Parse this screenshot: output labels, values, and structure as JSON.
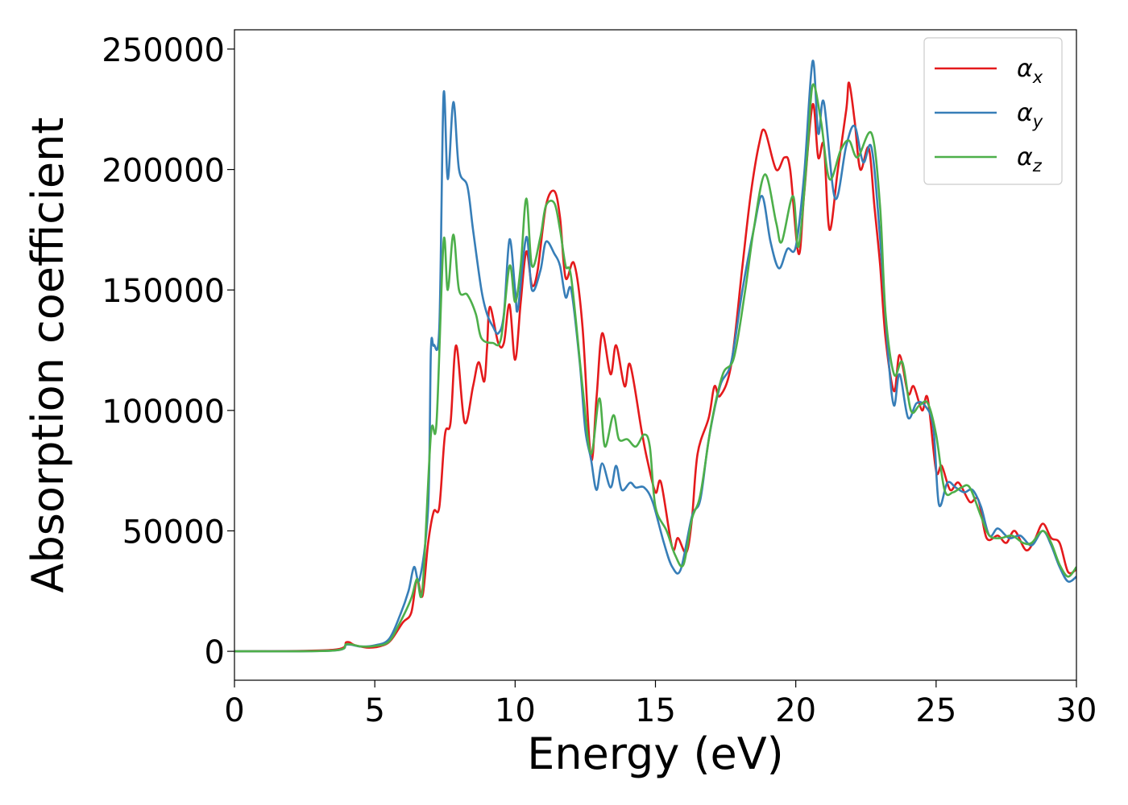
{
  "chart_data": {
    "type": "line",
    "xlabel": "Energy (eV)",
    "ylabel": "Absorption coefficient",
    "xlim": [
      0,
      30
    ],
    "ylim": [
      -12000,
      258000
    ],
    "xticks": [
      "0",
      "5",
      "10",
      "15",
      "20",
      "25",
      "30"
    ],
    "yticks": [
      "0",
      "50000",
      "100000",
      "150000",
      "200000",
      "250000"
    ],
    "grid": false,
    "legend_position": "top-right",
    "series": [
      {
        "name": "α",
        "subscript": "x",
        "color": "#e41a1c",
        "points": [
          [
            0,
            0
          ],
          [
            3.5,
            600
          ],
          [
            4.0,
            3800
          ],
          [
            4.3,
            2500
          ],
          [
            4.8,
            1500
          ],
          [
            5.3,
            2500
          ],
          [
            5.6,
            5000
          ],
          [
            6.0,
            12000
          ],
          [
            6.3,
            16000
          ],
          [
            6.5,
            30000
          ],
          [
            6.7,
            23000
          ],
          [
            6.9,
            45000
          ],
          [
            7.1,
            58000
          ],
          [
            7.3,
            60000
          ],
          [
            7.5,
            90000
          ],
          [
            7.7,
            95000
          ],
          [
            7.9,
            127000
          ],
          [
            8.2,
            95000
          ],
          [
            8.5,
            110000
          ],
          [
            8.7,
            120000
          ],
          [
            8.9,
            112000
          ],
          [
            9.0,
            126000
          ],
          [
            9.1,
            143000
          ],
          [
            9.4,
            128000
          ],
          [
            9.6,
            128000
          ],
          [
            9.8,
            144000
          ],
          [
            10.0,
            121000
          ],
          [
            10.2,
            145000
          ],
          [
            10.4,
            166000
          ],
          [
            10.6,
            152000
          ],
          [
            10.8,
            158000
          ],
          [
            11.1,
            185000
          ],
          [
            11.4,
            191000
          ],
          [
            11.6,
            180000
          ],
          [
            11.8,
            155000
          ],
          [
            12.1,
            161000
          ],
          [
            12.4,
            135000
          ],
          [
            12.7,
            80000
          ],
          [
            12.9,
            105000
          ],
          [
            13.1,
            132000
          ],
          [
            13.4,
            115000
          ],
          [
            13.6,
            127000
          ],
          [
            13.9,
            110000
          ],
          [
            14.1,
            119000
          ],
          [
            14.5,
            92000
          ],
          [
            14.7,
            80000
          ],
          [
            15.0,
            66000
          ],
          [
            15.2,
            70000
          ],
          [
            15.6,
            43000
          ],
          [
            15.8,
            47000
          ],
          [
            16.1,
            41000
          ],
          [
            16.3,
            55000
          ],
          [
            16.5,
            82000
          ],
          [
            16.9,
            97000
          ],
          [
            17.1,
            110000
          ],
          [
            17.3,
            106000
          ],
          [
            17.7,
            119000
          ],
          [
            18.1,
            160000
          ],
          [
            18.4,
            190000
          ],
          [
            18.7,
            211000
          ],
          [
            18.9,
            216000
          ],
          [
            19.3,
            200000
          ],
          [
            19.6,
            205000
          ],
          [
            19.8,
            200000
          ],
          [
            20.1,
            165000
          ],
          [
            20.3,
            190000
          ],
          [
            20.6,
            227000
          ],
          [
            20.8,
            205000
          ],
          [
            21.0,
            210000
          ],
          [
            21.2,
            175000
          ],
          [
            21.5,
            200000
          ],
          [
            21.8,
            225000
          ],
          [
            21.9,
            236000
          ],
          [
            22.1,
            220000
          ],
          [
            22.3,
            200000
          ],
          [
            22.6,
            209000
          ],
          [
            22.8,
            185000
          ],
          [
            23.0,
            161000
          ],
          [
            23.2,
            130000
          ],
          [
            23.5,
            108000
          ],
          [
            23.7,
            123000
          ],
          [
            24.0,
            107000
          ],
          [
            24.2,
            110000
          ],
          [
            24.5,
            100000
          ],
          [
            24.7,
            105000
          ],
          [
            25.0,
            75000
          ],
          [
            25.2,
            77000
          ],
          [
            25.5,
            67000
          ],
          [
            25.8,
            70000
          ],
          [
            26.2,
            62000
          ],
          [
            26.5,
            63000
          ],
          [
            26.8,
            47000
          ],
          [
            27.2,
            48000
          ],
          [
            27.5,
            45000
          ],
          [
            27.8,
            50000
          ],
          [
            28.2,
            42000
          ],
          [
            28.5,
            46000
          ],
          [
            28.8,
            53000
          ],
          [
            29.1,
            47000
          ],
          [
            29.4,
            45000
          ],
          [
            29.7,
            33000
          ],
          [
            30.0,
            34000
          ]
        ]
      },
      {
        "name": "α",
        "subscript": "y",
        "color": "#377eb8",
        "points": [
          [
            0,
            0
          ],
          [
            3.5,
            300
          ],
          [
            4.0,
            2800
          ],
          [
            4.5,
            2000
          ],
          [
            5.0,
            2500
          ],
          [
            5.5,
            5000
          ],
          [
            5.9,
            15000
          ],
          [
            6.2,
            25000
          ],
          [
            6.4,
            35000
          ],
          [
            6.6,
            30000
          ],
          [
            6.9,
            60000
          ],
          [
            7.0,
            125000
          ],
          [
            7.1,
            127000
          ],
          [
            7.3,
            135000
          ],
          [
            7.45,
            231000
          ],
          [
            7.6,
            196000
          ],
          [
            7.8,
            228000
          ],
          [
            8.0,
            200000
          ],
          [
            8.3,
            193000
          ],
          [
            8.5,
            175000
          ],
          [
            8.8,
            150000
          ],
          [
            9.0,
            140000
          ],
          [
            9.2,
            135000
          ],
          [
            9.4,
            132000
          ],
          [
            9.6,
            140000
          ],
          [
            9.8,
            171000
          ],
          [
            10.0,
            150000
          ],
          [
            10.1,
            142000
          ],
          [
            10.4,
            172000
          ],
          [
            10.6,
            150000
          ],
          [
            10.9,
            158000
          ],
          [
            11.1,
            170000
          ],
          [
            11.4,
            165000
          ],
          [
            11.6,
            160000
          ],
          [
            11.8,
            147000
          ],
          [
            12.0,
            150000
          ],
          [
            12.3,
            120000
          ],
          [
            12.5,
            92000
          ],
          [
            12.7,
            80000
          ],
          [
            12.9,
            67000
          ],
          [
            13.1,
            78000
          ],
          [
            13.4,
            68000
          ],
          [
            13.6,
            77000
          ],
          [
            13.8,
            67000
          ],
          [
            14.1,
            70000
          ],
          [
            14.3,
            68000
          ],
          [
            14.6,
            68000
          ],
          [
            14.9,
            62000
          ],
          [
            15.3,
            45000
          ],
          [
            15.6,
            35000
          ],
          [
            15.9,
            34000
          ],
          [
            16.3,
            56000
          ],
          [
            16.6,
            63000
          ],
          [
            16.9,
            88000
          ],
          [
            17.3,
            110000
          ],
          [
            17.7,
            120000
          ],
          [
            18.1,
            150000
          ],
          [
            18.5,
            175000
          ],
          [
            18.8,
            189000
          ],
          [
            19.1,
            170000
          ],
          [
            19.4,
            159000
          ],
          [
            19.7,
            167000
          ],
          [
            20.0,
            168000
          ],
          [
            20.3,
            198000
          ],
          [
            20.6,
            245000
          ],
          [
            20.8,
            215000
          ],
          [
            21.0,
            228000
          ],
          [
            21.4,
            188000
          ],
          [
            21.8,
            210000
          ],
          [
            22.1,
            218000
          ],
          [
            22.4,
            203000
          ],
          [
            22.7,
            209000
          ],
          [
            23.0,
            172000
          ],
          [
            23.3,
            122000
          ],
          [
            23.5,
            102000
          ],
          [
            23.7,
            115000
          ],
          [
            24.0,
            97000
          ],
          [
            24.3,
            103000
          ],
          [
            24.6,
            102000
          ],
          [
            24.9,
            93000
          ],
          [
            25.1,
            61000
          ],
          [
            25.4,
            70000
          ],
          [
            25.7,
            68000
          ],
          [
            26.0,
            66000
          ],
          [
            26.3,
            67000
          ],
          [
            26.6,
            60000
          ],
          [
            26.9,
            48000
          ],
          [
            27.2,
            51000
          ],
          [
            27.6,
            47000
          ],
          [
            28.0,
            48000
          ],
          [
            28.4,
            44000
          ],
          [
            28.8,
            50000
          ],
          [
            29.1,
            44000
          ],
          [
            29.4,
            35000
          ],
          [
            29.7,
            29000
          ],
          [
            30.0,
            31000
          ]
        ]
      },
      {
        "name": "α",
        "subscript": "z",
        "color": "#4daf4a",
        "points": [
          [
            0,
            0
          ],
          [
            3.5,
            300
          ],
          [
            4.0,
            3000
          ],
          [
            4.5,
            2000
          ],
          [
            5.0,
            2200
          ],
          [
            5.5,
            4000
          ],
          [
            5.9,
            12000
          ],
          [
            6.3,
            22000
          ],
          [
            6.5,
            30000
          ],
          [
            6.7,
            26000
          ],
          [
            7.0,
            90000
          ],
          [
            7.2,
            95000
          ],
          [
            7.45,
            170000
          ],
          [
            7.6,
            150000
          ],
          [
            7.8,
            173000
          ],
          [
            8.0,
            150000
          ],
          [
            8.3,
            148000
          ],
          [
            8.6,
            140000
          ],
          [
            8.8,
            130000
          ],
          [
            9.2,
            128000
          ],
          [
            9.5,
            130000
          ],
          [
            9.8,
            160000
          ],
          [
            10.0,
            145000
          ],
          [
            10.2,
            160000
          ],
          [
            10.4,
            188000
          ],
          [
            10.6,
            160000
          ],
          [
            10.9,
            172000
          ],
          [
            11.1,
            185000
          ],
          [
            11.4,
            186000
          ],
          [
            11.6,
            175000
          ],
          [
            11.8,
            160000
          ],
          [
            12.0,
            155000
          ],
          [
            12.4,
            110000
          ],
          [
            12.7,
            82000
          ],
          [
            13.0,
            105000
          ],
          [
            13.2,
            85000
          ],
          [
            13.5,
            98000
          ],
          [
            13.7,
            88000
          ],
          [
            14.0,
            88000
          ],
          [
            14.3,
            85000
          ],
          [
            14.6,
            90000
          ],
          [
            14.8,
            85000
          ],
          [
            15.0,
            60000
          ],
          [
            15.4,
            50000
          ],
          [
            15.7,
            40000
          ],
          [
            16.0,
            36000
          ],
          [
            16.3,
            55000
          ],
          [
            16.6,
            65000
          ],
          [
            17.0,
            95000
          ],
          [
            17.4,
            115000
          ],
          [
            17.8,
            122000
          ],
          [
            18.2,
            150000
          ],
          [
            18.5,
            175000
          ],
          [
            18.9,
            198000
          ],
          [
            19.3,
            178000
          ],
          [
            19.5,
            170000
          ],
          [
            19.9,
            189000
          ],
          [
            20.1,
            168000
          ],
          [
            20.4,
            205000
          ],
          [
            20.6,
            235000
          ],
          [
            20.9,
            220000
          ],
          [
            21.2,
            196000
          ],
          [
            21.6,
            208000
          ],
          [
            21.9,
            212000
          ],
          [
            22.2,
            205000
          ],
          [
            22.7,
            215000
          ],
          [
            23.0,
            185000
          ],
          [
            23.2,
            140000
          ],
          [
            23.5,
            115000
          ],
          [
            23.8,
            120000
          ],
          [
            24.1,
            100000
          ],
          [
            24.4,
            102000
          ],
          [
            24.7,
            103000
          ],
          [
            25.0,
            90000
          ],
          [
            25.3,
            67000
          ],
          [
            25.6,
            66000
          ],
          [
            25.9,
            68000
          ],
          [
            26.2,
            68000
          ],
          [
            26.6,
            56000
          ],
          [
            26.9,
            48000
          ],
          [
            27.3,
            47000
          ],
          [
            27.7,
            48000
          ],
          [
            28.1,
            45000
          ],
          [
            28.4,
            45000
          ],
          [
            28.8,
            50000
          ],
          [
            29.1,
            45000
          ],
          [
            29.4,
            36000
          ],
          [
            29.7,
            31000
          ],
          [
            30.0,
            35000
          ]
        ]
      }
    ]
  }
}
